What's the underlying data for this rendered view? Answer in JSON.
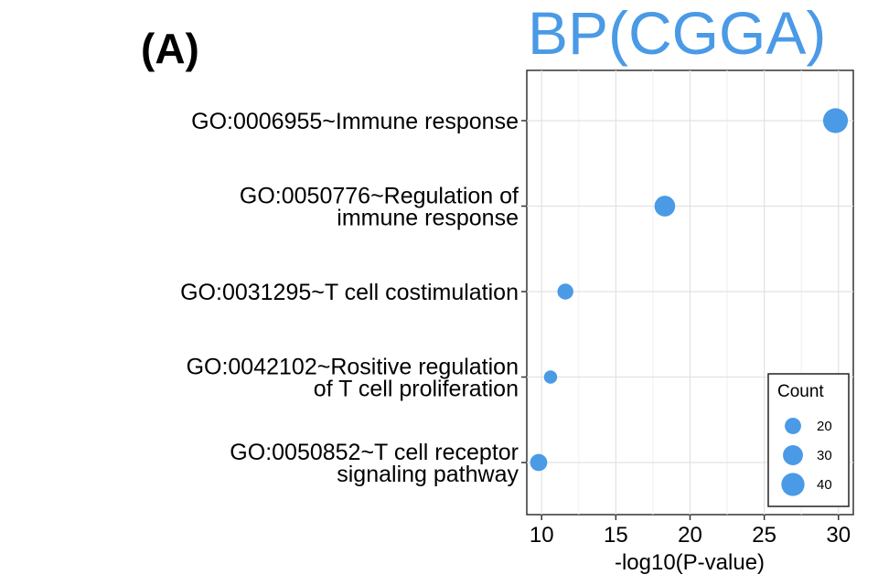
{
  "panel_label": "(A)",
  "chart_data": {
    "type": "scatter",
    "title": "BP(CGGA)",
    "xlabel": "-log10(P-value)",
    "ylabel": "",
    "xlim": [
      9,
      31
    ],
    "xticks": [
      10,
      15,
      20,
      25,
      30
    ],
    "grid": true,
    "point_color": "#4a9ae6",
    "categories": [
      [
        "GO:0006955~Immune response"
      ],
      [
        "GO:0050776~Regulation of",
        "immune response"
      ],
      [
        "GO:0031295~T cell costimulation"
      ],
      [
        "GO:0042102~Rositive regulation",
        "of T cell proliferation"
      ],
      [
        "GO:0050852~T cell receptor",
        "signaling pathway"
      ]
    ],
    "points": [
      {
        "x": 29.8,
        "count": 46
      },
      {
        "x": 18.3,
        "count": 32
      },
      {
        "x": 11.6,
        "count": 19
      },
      {
        "x": 10.6,
        "count": 13
      },
      {
        "x": 9.8,
        "count": 22
      }
    ],
    "legend": {
      "title": "Count",
      "position": "bottom-right",
      "entries": [
        20,
        30,
        40
      ]
    }
  }
}
